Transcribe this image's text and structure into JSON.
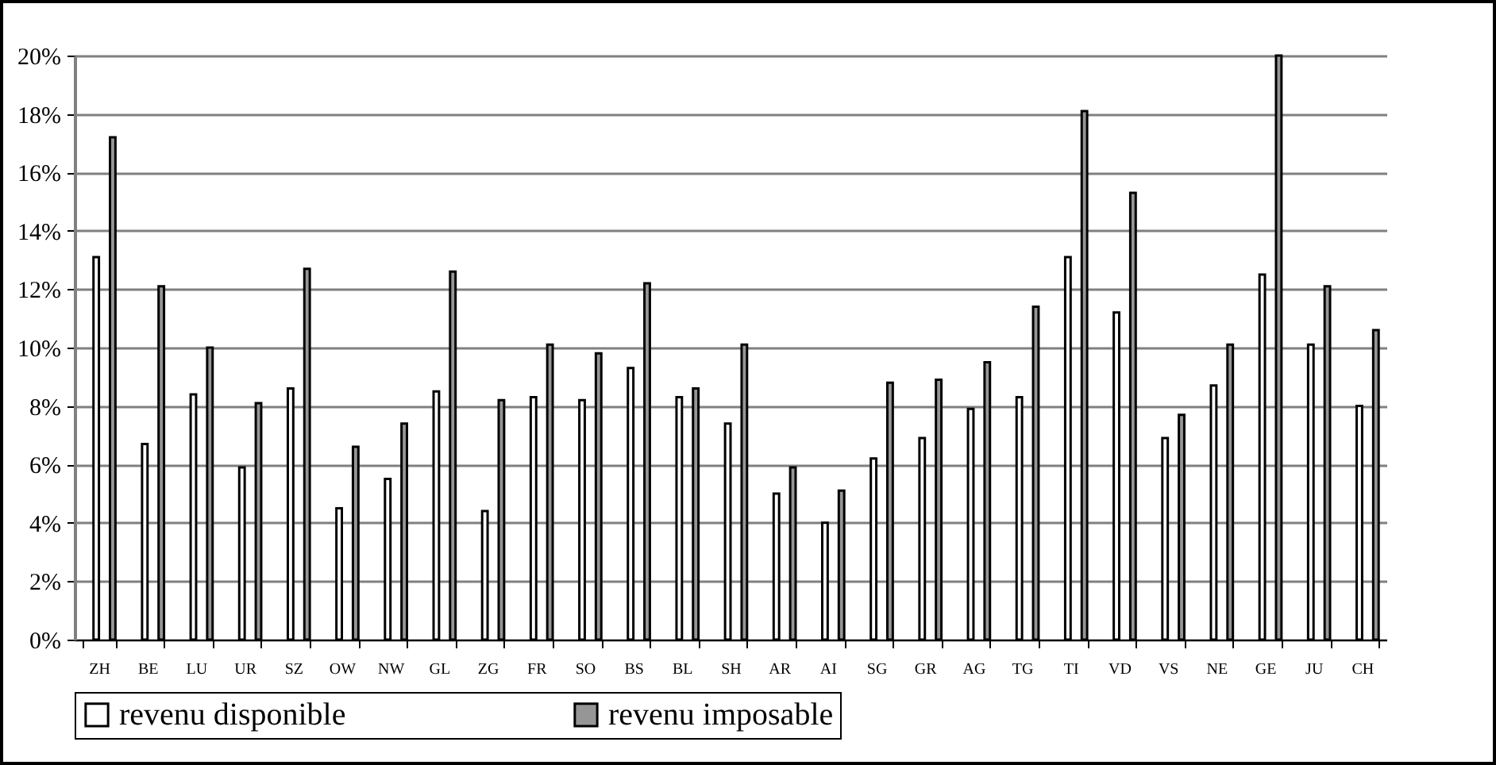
{
  "chart_data": {
    "type": "bar",
    "categories": [
      "ZH",
      "BE",
      "LU",
      "UR",
      "SZ",
      "OW",
      "NW",
      "GL",
      "ZG",
      "FR",
      "SO",
      "BS",
      "BL",
      "SH",
      "AR",
      "AI",
      "SG",
      "GR",
      "AG",
      "TG",
      "TI",
      "VD",
      "VS",
      "NE",
      "GE",
      "JU",
      "CH"
    ],
    "series": [
      {
        "name": "revenu disponible",
        "color": "#ffffff",
        "values": [
          13.1,
          6.7,
          8.4,
          5.9,
          8.6,
          4.5,
          5.5,
          8.5,
          4.4,
          8.3,
          8.2,
          9.3,
          8.3,
          7.4,
          5.0,
          4.0,
          6.2,
          6.9,
          7.9,
          8.3,
          13.1,
          11.2,
          6.9,
          8.7,
          12.5,
          10.1,
          8.0
        ]
      },
      {
        "name": "revenu imposable",
        "color": "#969696",
        "values": [
          17.2,
          12.1,
          10.0,
          8.1,
          12.7,
          6.6,
          7.4,
          12.6,
          8.2,
          10.1,
          9.8,
          12.2,
          8.6,
          10.1,
          5.9,
          5.1,
          8.8,
          8.9,
          9.5,
          11.4,
          18.1,
          15.3,
          7.7,
          10.1,
          20,
          12.1,
          10.6
        ]
      }
    ],
    "ylim": [
      0,
      20
    ],
    "yticks": [
      {
        "value": 0,
        "label": "0%"
      },
      {
        "value": 2,
        "label": "2%"
      },
      {
        "value": 4,
        "label": "4%"
      },
      {
        "value": 6,
        "label": "6%"
      },
      {
        "value": 8,
        "label": "8%"
      },
      {
        "value": 10,
        "label": "10%"
      },
      {
        "value": 12,
        "label": "12%"
      },
      {
        "value": 14,
        "label": "14%"
      },
      {
        "value": 16,
        "label": "16%"
      },
      {
        "value": 18,
        "label": "18%"
      },
      {
        "value": 20,
        "label": "20%"
      }
    ],
    "grid": "y",
    "legend": "bottom"
  }
}
